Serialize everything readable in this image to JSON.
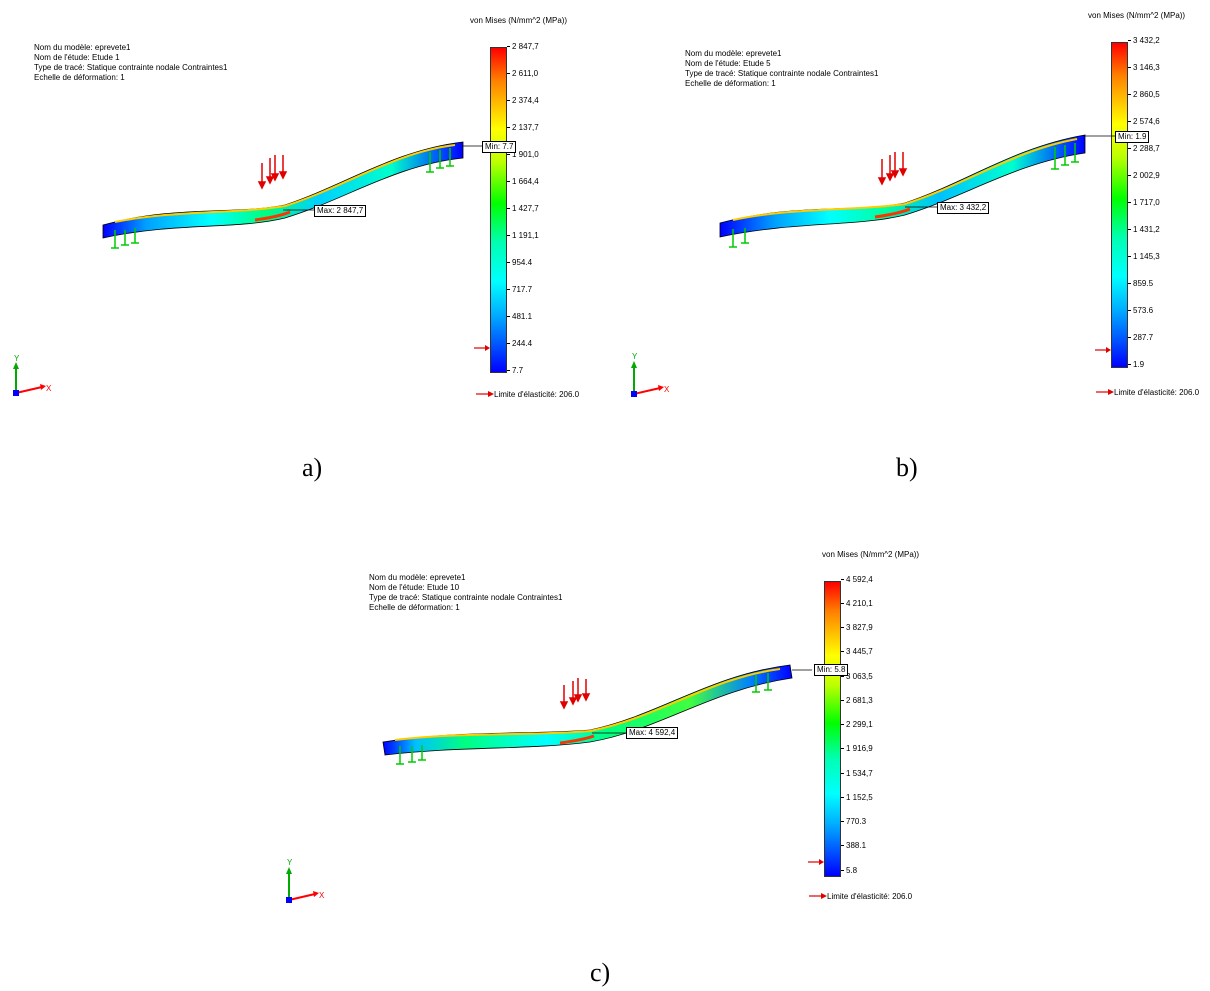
{
  "panels": [
    {
      "caption": "a)",
      "info": [
        "Nom du modèle: eprevete1",
        "Nom de l'étude: Etude 1",
        "Type de tracé: Statique contrainte nodale Contraintes1",
        "Echelle de déformation: 1"
      ],
      "unit_label": "von Mises (N/mm^2 (MPa))",
      "scale": [
        "2 847,7",
        "2 611,0",
        "2 374,4",
        "2 137,7",
        "1 901,0",
        "1 664,4",
        "1 427,7",
        "1 191,1",
        "954.4",
        "717.7",
        "481.1",
        "244.4",
        "7.7"
      ],
      "min_label": "Min: 7.7",
      "max_label": "Max: 2 847,7",
      "yield_label": "Limite d'élasticité: 206.0"
    },
    {
      "caption": "b)",
      "info": [
        "Nom du modèle: eprevete1",
        "Nom de l'étude: Etude 5",
        "Type de tracé: Statique contrainte nodale Contraintes1",
        "Echelle de déformation: 1"
      ],
      "unit_label": "von Mises (N/mm^2 (MPa))",
      "scale": [
        "3 432,2",
        "3 146,3",
        "2 860,5",
        "2 574,6",
        "2 288,7",
        "2 002,9",
        "1 717,0",
        "1 431,2",
        "1 145,3",
        "859.5",
        "573.6",
        "287.7",
        "1.9"
      ],
      "min_label": "Min: 1.9",
      "max_label": "Max: 3 432,2",
      "yield_label": "Limite d'élasticité: 206.0"
    },
    {
      "caption": "c)",
      "info": [
        "Nom du modèle: eprevete1",
        "Nom de l'étude: Etude 10",
        "Type de tracé: Statique contrainte nodale Contraintes1",
        "Echelle de déformation: 1"
      ],
      "unit_label": "von Mises (N/mm^2 (MPa))",
      "scale": [
        "4 592,4",
        "4 210,1",
        "3 827,9",
        "3 445,7",
        "3 063,5",
        "2 681,3",
        "2 299,1",
        "1 916,9",
        "1 534,7",
        "1 152,5",
        "770.3",
        "388.1",
        "5.8"
      ],
      "min_label": "Min: 5.8",
      "max_label": "Max: 4 592,4",
      "yield_label": "Limite d'élasticité: 206.0"
    }
  ],
  "colors": {
    "load_arrow": "#e00000",
    "fixture": "#00cc00",
    "axis_x": "#ff0000",
    "axis_y": "#00aa00",
    "axis_z": "#0000ff"
  }
}
